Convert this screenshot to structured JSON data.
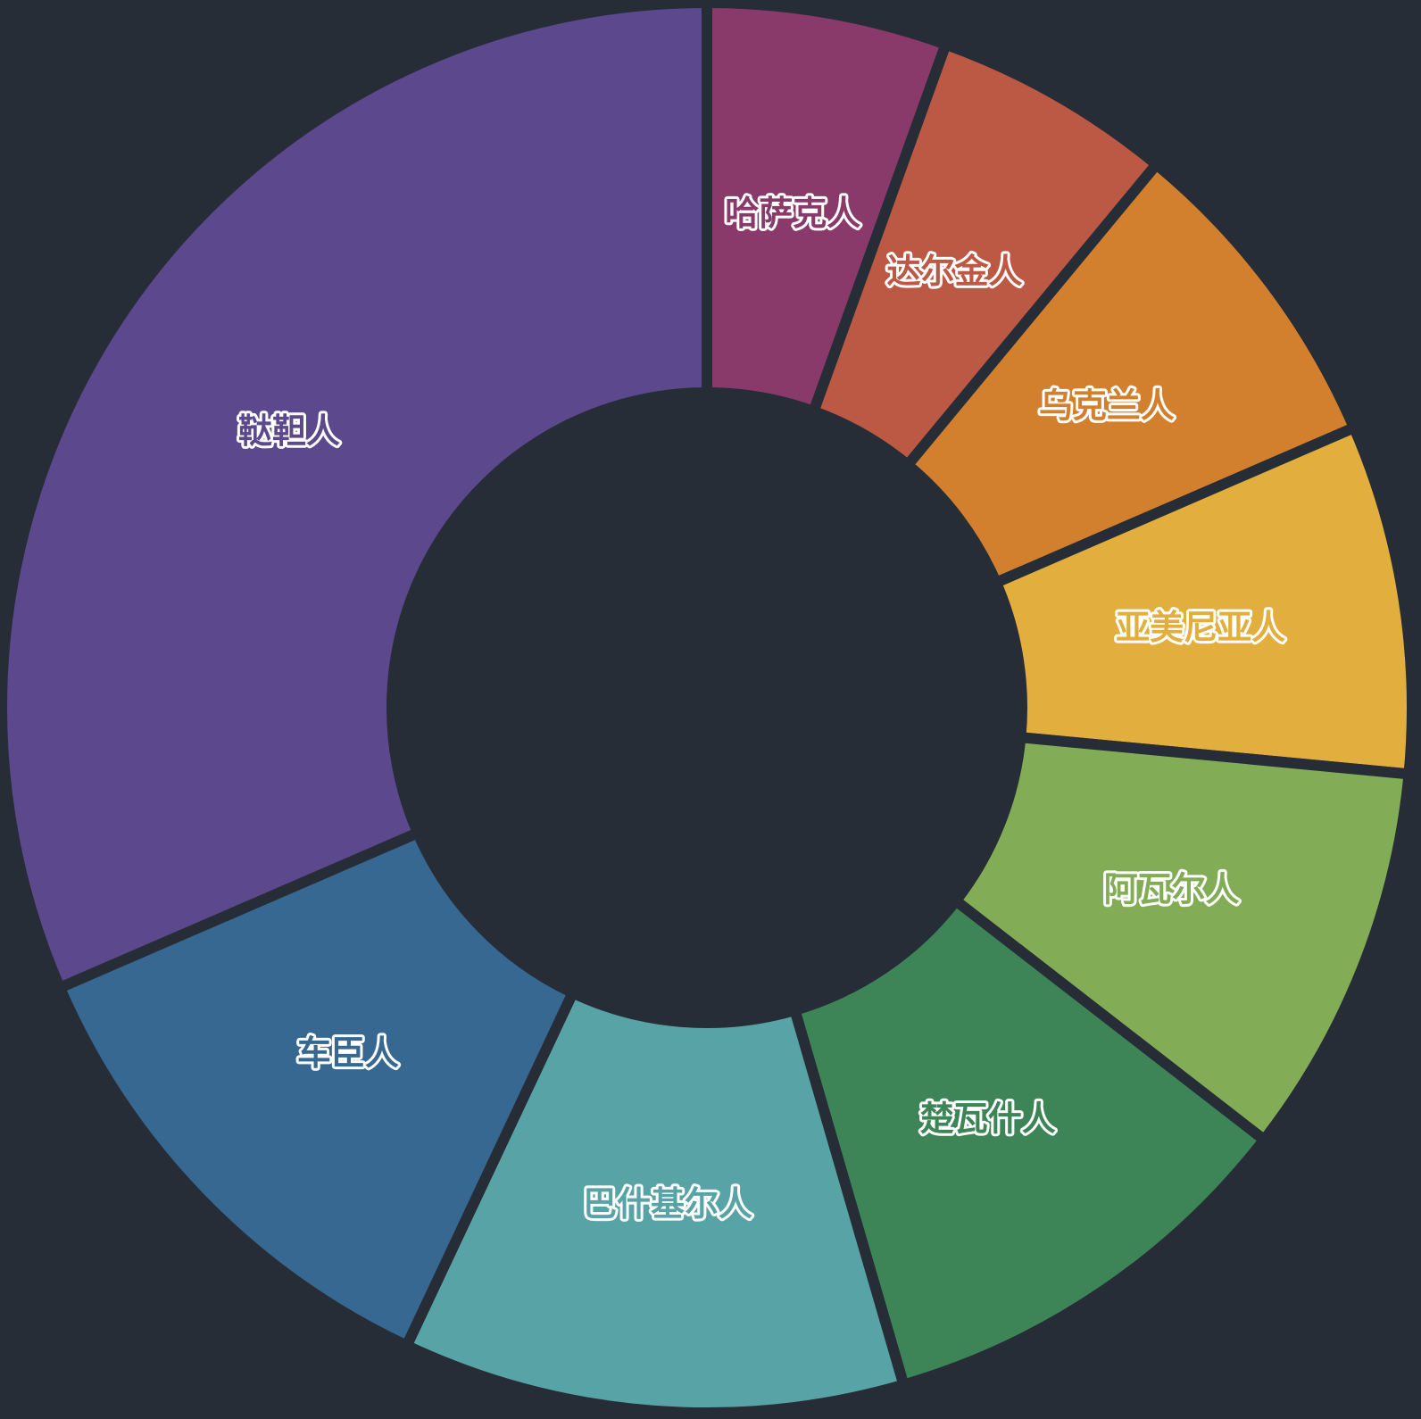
{
  "chart_data": {
    "type": "pie",
    "variant": "donut",
    "background_color": "#262d36",
    "slice_gap_color": "#262d36",
    "label_outline_color": "#ffffff",
    "label_position": "inside",
    "legend": "none",
    "title": "",
    "slices": [
      {
        "label": "哈萨克人",
        "value": 5.5,
        "color": "#8a3a6a"
      },
      {
        "label": "达尔金人",
        "value": 5.5,
        "color": "#bc5944"
      },
      {
        "label": "乌克兰人",
        "value": 7.5,
        "color": "#d27f2e"
      },
      {
        "label": "亚美尼亚人",
        "value": 8.0,
        "color": "#e2ae3d"
      },
      {
        "label": "阿瓦尔人",
        "value": 9.0,
        "color": "#82ac56"
      },
      {
        "label": "楚瓦什人",
        "value": 10.0,
        "color": "#3d8457"
      },
      {
        "label": "巴什基尔人",
        "value": 11.5,
        "color": "#58a3a6"
      },
      {
        "label": "车臣人",
        "value": 11.5,
        "color": "#366891"
      },
      {
        "label": "鞑靼人",
        "value": 31.5,
        "color": "#5c488c"
      }
    ]
  }
}
